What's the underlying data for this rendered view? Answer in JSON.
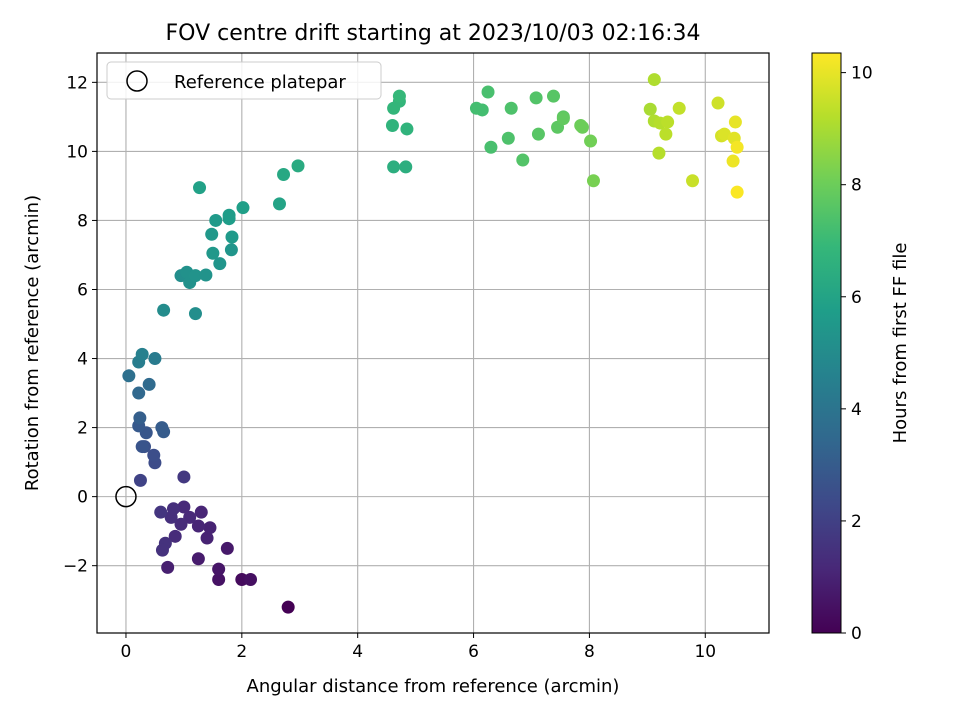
{
  "chart_data": {
    "type": "scatter",
    "title": "FOV centre drift starting at 2023/10/03 02:16:34",
    "xlabel": "Angular distance from reference (arcmin)",
    "ylabel": "Rotation from reference (arcmin)",
    "xlim": [
      -0.5,
      11.1
    ],
    "ylim": [
      -3.95,
      12.85
    ],
    "xticks": [
      0,
      2,
      4,
      6,
      8,
      10
    ],
    "yticks": [
      -2,
      0,
      2,
      4,
      6,
      8,
      10,
      12
    ],
    "xtick_labels": [
      "0",
      "2",
      "4",
      "6",
      "8",
      "10"
    ],
    "ytick_labels": [
      "−2",
      "0",
      "2",
      "4",
      "6",
      "8",
      "10",
      "12"
    ],
    "grid": true,
    "legend": {
      "position": "top-left",
      "entries": [
        "Reference platepar"
      ]
    },
    "colorbar": {
      "label": "Hours from first FF file",
      "range": [
        0,
        10.35
      ],
      "ticks": [
        0,
        2,
        4,
        6,
        8,
        10
      ],
      "tick_labels": [
        "0",
        "2",
        "4",
        "6",
        "8",
        "10"
      ],
      "colormap": "viridis"
    },
    "reference_point": {
      "x": 0,
      "y": 0,
      "marker": "open-circle"
    },
    "colormap_stops": [
      "#440154",
      "#482878",
      "#3e4989",
      "#31688e",
      "#26828e",
      "#1f9e89",
      "#35b779",
      "#6ece58",
      "#b5de2b",
      "#fde725"
    ],
    "points": [
      [
        2.8,
        -3.2,
        0.0
      ],
      [
        2.0,
        -2.4,
        0.3
      ],
      [
        2.15,
        -2.4,
        0.4
      ],
      [
        1.6,
        -2.4,
        0.5
      ],
      [
        1.6,
        -2.1,
        0.6
      ],
      [
        1.75,
        -1.5,
        0.7
      ],
      [
        1.25,
        -1.8,
        0.8
      ],
      [
        0.72,
        -2.05,
        0.9
      ],
      [
        1.4,
        -1.2,
        1.0
      ],
      [
        1.45,
        -0.9,
        1.0
      ],
      [
        1.25,
        -0.85,
        1.1
      ],
      [
        1.3,
        -0.45,
        1.1
      ],
      [
        1.1,
        -0.6,
        1.2
      ],
      [
        1.0,
        -0.3,
        1.2
      ],
      [
        0.95,
        -0.8,
        1.3
      ],
      [
        0.85,
        -1.15,
        1.3
      ],
      [
        0.78,
        -0.6,
        1.4
      ],
      [
        0.82,
        -0.35,
        1.4
      ],
      [
        0.68,
        -1.35,
        1.5
      ],
      [
        0.63,
        -1.55,
        1.5
      ],
      [
        0.6,
        -0.45,
        1.6
      ],
      [
        1.0,
        0.57,
        1.7
      ],
      [
        0.25,
        0.47,
        2.1
      ],
      [
        0.5,
        0.98,
        2.4
      ],
      [
        0.48,
        1.2,
        2.5
      ],
      [
        0.32,
        1.45,
        2.6
      ],
      [
        0.28,
        1.45,
        2.7
      ],
      [
        0.35,
        1.85,
        2.8
      ],
      [
        0.22,
        2.05,
        2.9
      ],
      [
        0.65,
        1.88,
        3.0
      ],
      [
        0.62,
        2.0,
        3.0
      ],
      [
        0.24,
        2.28,
        3.1
      ],
      [
        0.22,
        3.0,
        3.5
      ],
      [
        0.4,
        3.25,
        3.6
      ],
      [
        0.05,
        3.5,
        3.8
      ],
      [
        0.5,
        4.0,
        4.3
      ],
      [
        0.22,
        3.9,
        4.4
      ],
      [
        0.28,
        4.12,
        4.5
      ],
      [
        0.65,
        5.4,
        5.0
      ],
      [
        1.2,
        5.3,
        5.1
      ],
      [
        0.95,
        6.4,
        5.1
      ],
      [
        1.05,
        6.5,
        5.2
      ],
      [
        1.1,
        6.2,
        5.2
      ],
      [
        1.2,
        6.4,
        5.3
      ],
      [
        1.38,
        6.42,
        5.3
      ],
      [
        1.62,
        6.75,
        5.4
      ],
      [
        1.82,
        7.15,
        5.4
      ],
      [
        1.5,
        7.05,
        5.5
      ],
      [
        1.48,
        7.6,
        5.5
      ],
      [
        1.83,
        7.52,
        5.6
      ],
      [
        1.55,
        8.0,
        5.6
      ],
      [
        1.78,
        8.05,
        5.7
      ],
      [
        1.78,
        8.15,
        5.7
      ],
      [
        2.02,
        8.37,
        5.8
      ],
      [
        1.27,
        8.95,
        5.9
      ],
      [
        2.65,
        8.48,
        6.0
      ],
      [
        2.72,
        9.33,
        6.2
      ],
      [
        2.97,
        9.58,
        6.3
      ],
      [
        4.62,
        9.55,
        6.5
      ],
      [
        4.83,
        9.55,
        6.5
      ],
      [
        4.6,
        10.75,
        6.7
      ],
      [
        4.85,
        10.65,
        6.7
      ],
      [
        4.62,
        11.25,
        6.8
      ],
      [
        4.72,
        11.45,
        6.8
      ],
      [
        4.72,
        11.6,
        6.9
      ],
      [
        6.05,
        11.25,
        7.2
      ],
      [
        6.15,
        11.2,
        7.2
      ],
      [
        6.25,
        11.72,
        7.3
      ],
      [
        6.3,
        10.12,
        7.3
      ],
      [
        6.6,
        10.38,
        7.4
      ],
      [
        6.65,
        11.25,
        7.4
      ],
      [
        6.85,
        9.75,
        7.5
      ],
      [
        7.08,
        11.55,
        7.5
      ],
      [
        7.12,
        10.5,
        7.6
      ],
      [
        7.38,
        11.6,
        7.6
      ],
      [
        7.45,
        10.7,
        7.7
      ],
      [
        7.55,
        11.0,
        7.7
      ],
      [
        7.55,
        10.95,
        7.8
      ],
      [
        7.85,
        10.75,
        8.0
      ],
      [
        7.88,
        10.7,
        8.0
      ],
      [
        8.02,
        10.3,
        8.1
      ],
      [
        8.07,
        9.15,
        8.2
      ],
      [
        9.05,
        11.22,
        9.0
      ],
      [
        9.12,
        12.08,
        9.1
      ],
      [
        9.12,
        10.88,
        9.1
      ],
      [
        9.2,
        9.95,
        9.2
      ],
      [
        9.22,
        10.82,
        9.2
      ],
      [
        9.32,
        10.5,
        9.3
      ],
      [
        9.35,
        10.85,
        9.3
      ],
      [
        9.55,
        11.25,
        9.4
      ],
      [
        9.78,
        9.15,
        9.5
      ],
      [
        10.22,
        11.4,
        9.6
      ],
      [
        10.28,
        10.45,
        9.7
      ],
      [
        10.33,
        10.5,
        9.8
      ],
      [
        10.5,
        10.38,
        9.9
      ],
      [
        10.52,
        10.85,
        10.0
      ],
      [
        10.48,
        9.72,
        10.1
      ],
      [
        10.55,
        10.12,
        10.2
      ],
      [
        10.55,
        8.82,
        10.3
      ]
    ]
  }
}
